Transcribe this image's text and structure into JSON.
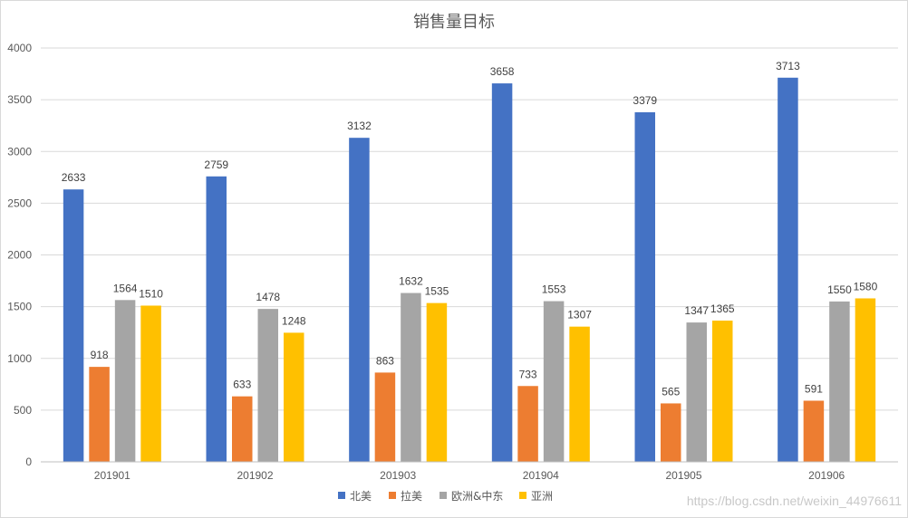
{
  "chart_data": {
    "type": "bar",
    "title": "销售量目标",
    "xlabel": "",
    "ylabel": "",
    "ylim": [
      0,
      4000
    ],
    "yticks": [
      0,
      500,
      1000,
      1500,
      2000,
      2500,
      3000,
      3500,
      4000
    ],
    "categories": [
      "201901",
      "201902",
      "201903",
      "201904",
      "201905",
      "201906"
    ],
    "series": [
      {
        "name": "北美",
        "color": "#4472C4",
        "values": [
          2633,
          2759,
          3132,
          3658,
          3379,
          3713
        ]
      },
      {
        "name": "拉美",
        "color": "#ED7D31",
        "values": [
          918,
          633,
          863,
          733,
          565,
          591
        ]
      },
      {
        "name": "欧洲&中东",
        "color": "#A5A5A5",
        "values": [
          1564,
          1478,
          1632,
          1553,
          1347,
          1550
        ]
      },
      {
        "name": "亚洲",
        "color": "#FFC000",
        "values": [
          1510,
          1248,
          1535,
          1307,
          1365,
          1580
        ]
      }
    ],
    "grid": true,
    "legend": "bottom",
    "data_labels": true
  },
  "watermark": "https://blog.csdn.net/weixin_44976611"
}
